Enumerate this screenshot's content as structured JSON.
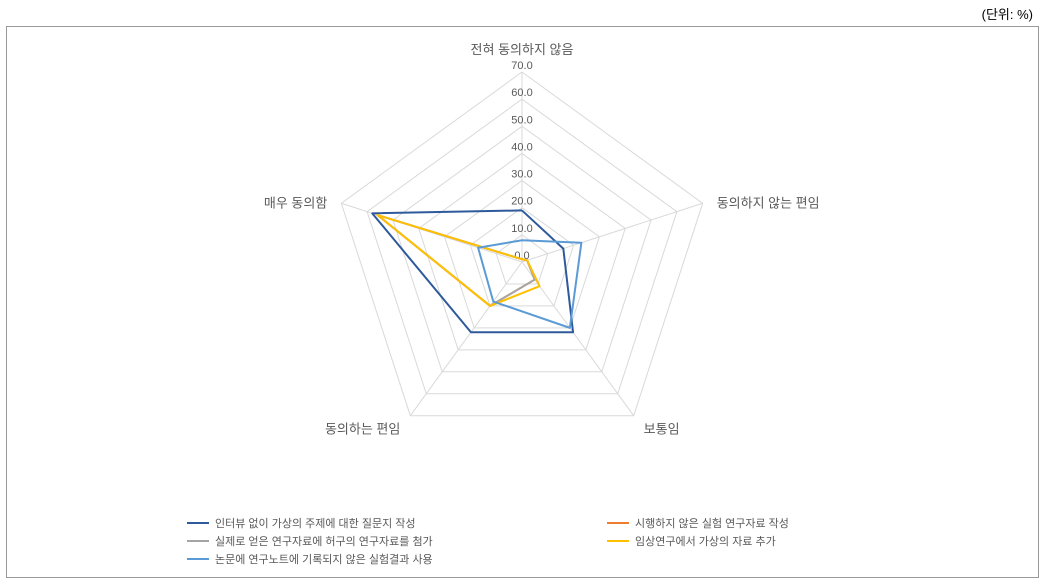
{
  "unit_label": "(단위: %)",
  "radar_chart": {
    "type": "radar",
    "background_color": "#ffffff",
    "border_color": "#999999",
    "grid_color": "#d9d9d9",
    "axis_label_color": "#595959",
    "axis_label_fontsize": 13,
    "tick_label_fontsize": 11,
    "max_value": 70,
    "tick_step": 10,
    "ticks": [
      0.0,
      10.0,
      20.0,
      30.0,
      40.0,
      50.0,
      60.0,
      70.0
    ],
    "axes": [
      "전혀 동의하지 않음",
      "동의하지 않는 편임",
      "보통임",
      "동의하는 편임",
      "매우 동의함"
    ],
    "series": [
      {
        "name": "인터뷰 없이 가상의 주제에 대한 질문지 작성",
        "color": "#2e5a9c",
        "line_width": 2,
        "values": [
          19,
          16,
          32,
          32,
          58
        ]
      },
      {
        "name": "시행하지 않은 실험 연구자료 작성",
        "color": "#ed7d31",
        "line_width": 2,
        "values": [
          1,
          2,
          8,
          20,
          56
        ]
      },
      {
        "name": "실제로 얻은 연구자료에 허구의 연구자료를 첨가",
        "color": "#a5a5a5",
        "line_width": 2,
        "values": [
          1,
          2,
          8,
          20,
          56
        ]
      },
      {
        "name": "임상연구에서 가상의 자료 추가",
        "color": "#ffc000",
        "line_width": 2,
        "values": [
          1,
          2,
          11,
          20,
          56
        ]
      },
      {
        "name": "논문에 연구노트에 기록되지 않은 실험결과 사용",
        "color": "#5b9bd5",
        "line_width": 2,
        "values": [
          8,
          23,
          30,
          18,
          17
        ]
      }
    ],
    "legend": {
      "position": "bottom-left",
      "columns": 2,
      "fontsize": 11
    }
  }
}
